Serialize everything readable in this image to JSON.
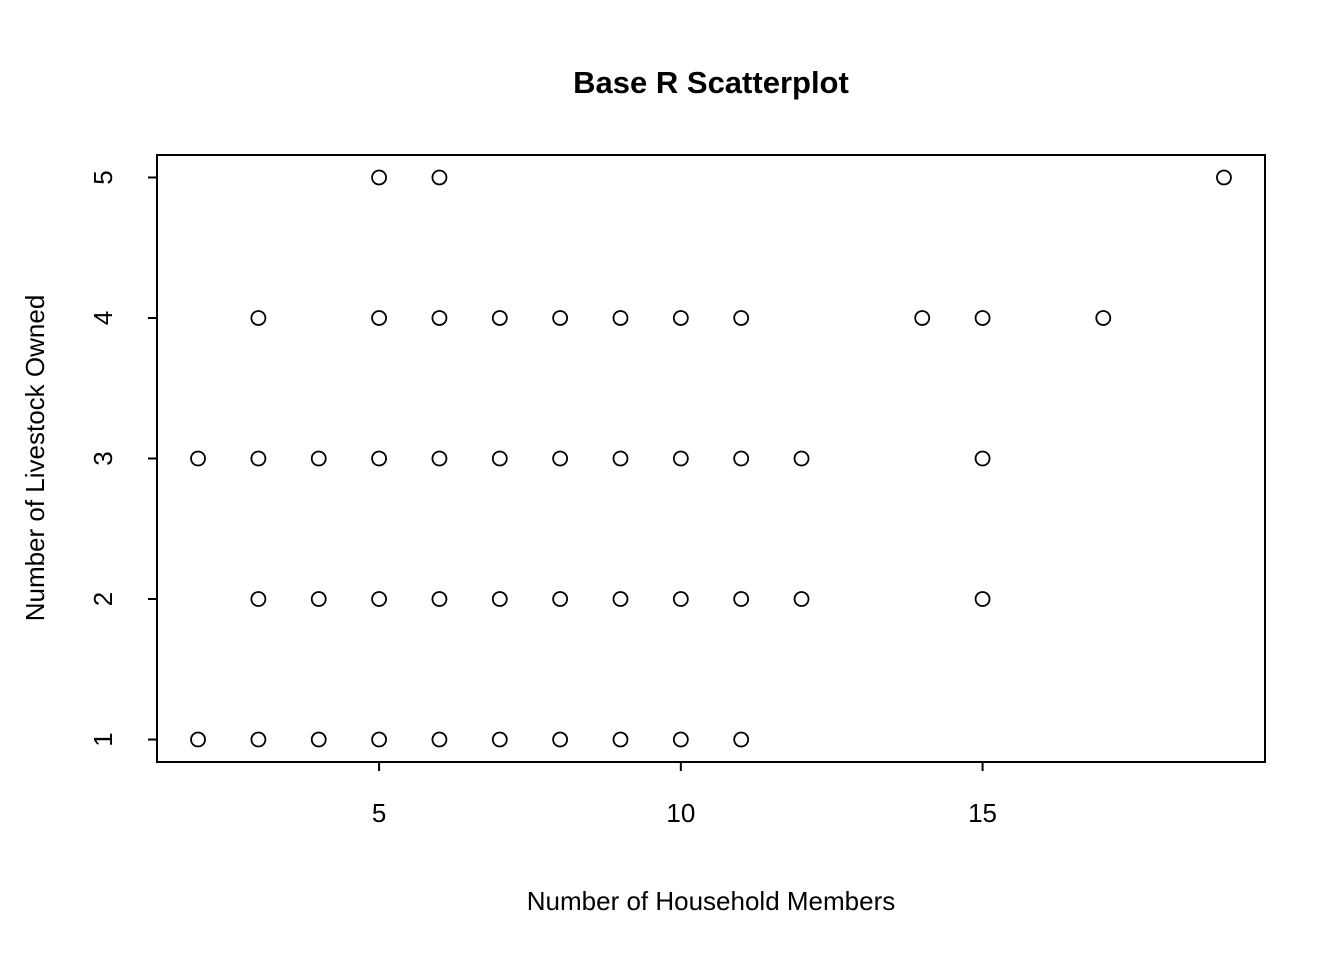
{
  "chart_data": {
    "type": "scatter",
    "title": "Base R Scatterplot",
    "xlabel": "Number of Household Members",
    "ylabel": "Number of Livestock Owned",
    "x_ticks": [
      5,
      10,
      15
    ],
    "y_ticks": [
      1,
      2,
      3,
      4,
      5
    ],
    "xlim": [
      1.32,
      19.68
    ],
    "ylim": [
      0.84,
      5.16
    ],
    "grid": false,
    "legend": "none",
    "marker": "open-circle",
    "colors": {
      "foreground": "#000000",
      "background": "#ffffff"
    },
    "points": [
      [
        2,
        1
      ],
      [
        3,
        1
      ],
      [
        4,
        1
      ],
      [
        5,
        1
      ],
      [
        6,
        1
      ],
      [
        7,
        1
      ],
      [
        8,
        1
      ],
      [
        9,
        1
      ],
      [
        10,
        1
      ],
      [
        11,
        1
      ],
      [
        3,
        2
      ],
      [
        4,
        2
      ],
      [
        5,
        2
      ],
      [
        6,
        2
      ],
      [
        7,
        2
      ],
      [
        8,
        2
      ],
      [
        9,
        2
      ],
      [
        10,
        2
      ],
      [
        11,
        2
      ],
      [
        12,
        2
      ],
      [
        15,
        2
      ],
      [
        2,
        3
      ],
      [
        3,
        3
      ],
      [
        4,
        3
      ],
      [
        5,
        3
      ],
      [
        6,
        3
      ],
      [
        7,
        3
      ],
      [
        8,
        3
      ],
      [
        9,
        3
      ],
      [
        10,
        3
      ],
      [
        11,
        3
      ],
      [
        12,
        3
      ],
      [
        15,
        3
      ],
      [
        3,
        4
      ],
      [
        5,
        4
      ],
      [
        6,
        4
      ],
      [
        7,
        4
      ],
      [
        8,
        4
      ],
      [
        9,
        4
      ],
      [
        10,
        4
      ],
      [
        11,
        4
      ],
      [
        14,
        4
      ],
      [
        15,
        4
      ],
      [
        17,
        4
      ],
      [
        5,
        5
      ],
      [
        6,
        5
      ],
      [
        19,
        5
      ]
    ]
  }
}
